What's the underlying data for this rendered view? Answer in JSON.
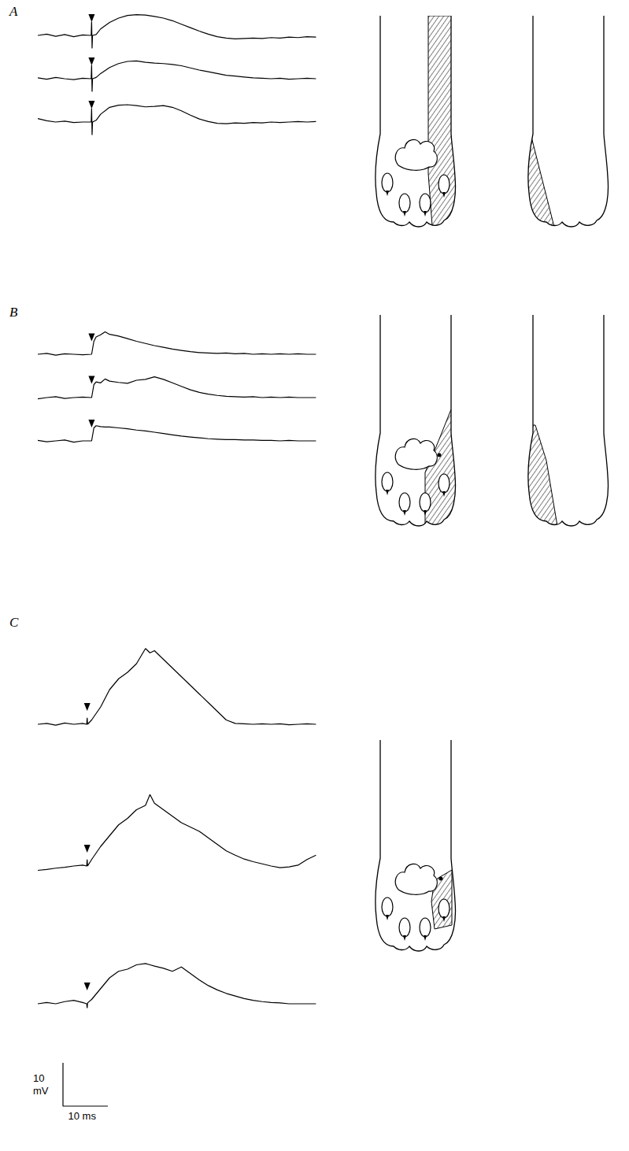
{
  "chart_data": {
    "type": "line",
    "color": "#000000",
    "grid": false,
    "tick_labels": false,
    "panels": [
      {
        "label": "A",
        "stimulus_ms": 12,
        "xlim": [
          0,
          62
        ],
        "ylim": [
          -4,
          7
        ],
        "traces": [
          {
            "x": [
              0,
              2,
              4,
              6,
              8,
              10,
              11.9,
              12,
              12.1,
              12.2,
              13,
              14,
              16,
              18,
              20,
              22,
              24,
              26,
              28,
              30,
              32,
              34,
              36,
              38,
              40,
              42,
              44,
              46,
              48,
              50,
              52,
              54,
              56,
              58,
              60,
              62
            ],
            "values": [
              0,
              0.3,
              -0.2,
              0.2,
              -0.3,
              0.1,
              0,
              3.2,
              -3,
              0,
              0.2,
              1.5,
              3,
              4,
              4.6,
              4.8,
              4.7,
              4.4,
              4,
              3.4,
              2.6,
              1.8,
              1,
              0.3,
              -0.3,
              -0.6,
              -0.8,
              -0.7,
              -0.6,
              -0.7,
              -0.5,
              -0.6,
              -0.4,
              -0.5,
              -0.3,
              -0.4
            ]
          },
          {
            "x": [
              0,
              2,
              4,
              6,
              8,
              10,
              11.9,
              12,
              12.1,
              12.2,
              13,
              14,
              16,
              18,
              20,
              22,
              24,
              26,
              28,
              30,
              32,
              34,
              36,
              38,
              40,
              42,
              44,
              46,
              48,
              50,
              52,
              54,
              56,
              58,
              60,
              62
            ],
            "values": [
              0.2,
              -0.1,
              0.3,
              0,
              -0.2,
              0.1,
              0,
              3.2,
              -3,
              0,
              0.3,
              1.2,
              2.6,
              3.5,
              4,
              4.1,
              3.8,
              3.6,
              3.5,
              3.3,
              3,
              2.5,
              2,
              1.6,
              1.2,
              0.8,
              0.6,
              0.4,
              0.2,
              0.1,
              0,
              0.1,
              -0.1,
              0,
              0.1,
              0
            ]
          },
          {
            "x": [
              0,
              2,
              4,
              6,
              8,
              10,
              11.9,
              12,
              12.1,
              12.2,
              13,
              14,
              16,
              18,
              20,
              22,
              24,
              26,
              28,
              30,
              32,
              34,
              36,
              38,
              40,
              42,
              44,
              46,
              48,
              50,
              52,
              54,
              56,
              58,
              60,
              62
            ],
            "values": [
              0.8,
              0.3,
              0,
              0.2,
              -0.1,
              0,
              0,
              3.2,
              -3,
              0,
              0.4,
              1.8,
              3.4,
              3.9,
              4,
              3.8,
              3.5,
              3.6,
              3.8,
              3.4,
              2.6,
              1.6,
              0.7,
              0.1,
              -0.3,
              -0.4,
              -0.2,
              -0.3,
              -0.1,
              -0.2,
              0,
              -0.1,
              0,
              0.1,
              0,
              0.1
            ]
          }
        ]
      },
      {
        "label": "B",
        "stimulus_ms": 12,
        "xlim": [
          0,
          62
        ],
        "ylim": [
          -4,
          7
        ],
        "traces": [
          {
            "x": [
              0,
              2,
              4,
              6,
              8,
              10,
              12,
              12.5,
              13,
              14,
              15,
              16,
              18,
              20,
              22,
              24,
              26,
              28,
              30,
              32,
              34,
              36,
              38,
              40,
              42,
              44,
              46,
              48,
              50,
              52,
              54,
              56,
              58,
              60,
              62
            ],
            "values": [
              0,
              0.2,
              -0.2,
              0.1,
              0,
              -0.1,
              0,
              3,
              4,
              4.5,
              5.2,
              4.6,
              4.2,
              3.6,
              3,
              2.5,
              2,
              1.6,
              1.2,
              0.9,
              0.6,
              0.4,
              0.3,
              0.2,
              0.3,
              0.1,
              0.2,
              0,
              0.1,
              0,
              0.1,
              0,
              0.1,
              0,
              0
            ]
          },
          {
            "x": [
              0,
              2,
              4,
              6,
              8,
              10,
              12,
              12.5,
              13,
              14,
              15,
              16,
              18,
              20,
              22,
              24,
              26,
              28,
              30,
              32,
              34,
              36,
              38,
              40,
              42,
              44,
              46,
              48,
              50,
              52,
              54,
              56,
              58,
              60,
              62
            ],
            "values": [
              -0.3,
              0,
              0.2,
              -0.2,
              0,
              0.1,
              0,
              3,
              3.6,
              3.4,
              4.3,
              3.8,
              3.5,
              3.3,
              4,
              4.2,
              4.8,
              4.2,
              3.4,
              2.6,
              1.8,
              1.2,
              0.8,
              0.5,
              0.3,
              0.2,
              0.1,
              0.2,
              0,
              0.1,
              0,
              0.1,
              0,
              0,
              0
            ]
          },
          {
            "x": [
              0,
              2,
              4,
              6,
              8,
              10,
              12,
              12.5,
              13,
              14,
              15,
              16,
              18,
              20,
              22,
              24,
              26,
              28,
              30,
              32,
              34,
              36,
              38,
              40,
              42,
              44,
              46,
              48,
              50,
              52,
              54,
              56,
              58,
              60,
              62
            ],
            "values": [
              0.1,
              -0.2,
              0,
              0.2,
              -0.3,
              0,
              0,
              3,
              3.5,
              3.3,
              3.2,
              3.2,
              3,
              2.8,
              2.5,
              2.3,
              2,
              1.7,
              1.4,
              1.1,
              0.9,
              0.7,
              0.5,
              0.4,
              0.3,
              0.3,
              0.2,
              0.2,
              0.1,
              0.1,
              0,
              0.1,
              0,
              0,
              0
            ]
          }
        ]
      },
      {
        "label": "C",
        "stimulus_ms": 11,
        "xlim": [
          0,
          62
        ],
        "ylim": [
          -4,
          20
        ],
        "traces": [
          {
            "x": [
              0,
              2,
              4,
              6,
              8,
              10,
              10.9,
              11,
              11.1,
              12,
              14,
              16,
              18,
              20,
              22,
              24,
              25,
              26,
              28,
              30,
              32,
              34,
              36,
              38,
              40,
              42,
              44,
              46,
              48,
              50,
              52,
              54,
              56,
              58,
              60,
              62
            ],
            "values": [
              0,
              0.2,
              -0.2,
              0.3,
              0,
              0.2,
              0,
              1.5,
              0,
              1,
              4,
              8,
              10.5,
              12,
              14,
              17.5,
              16.5,
              17,
              15,
              13,
              11,
              9,
              7,
              5,
              3,
              1,
              0.2,
              0.1,
              0,
              0.1,
              0,
              0.1,
              -0.1,
              0,
              0.1,
              0
            ]
          },
          {
            "x": [
              0,
              2,
              4,
              6,
              8,
              10,
              10.9,
              11,
              11.1,
              12,
              14,
              16,
              18,
              20,
              22,
              24,
              25,
              26,
              28,
              30,
              32,
              34,
              36,
              38,
              40,
              42,
              44,
              46,
              48,
              50,
              52,
              54,
              56,
              58,
              60,
              62
            ],
            "values": [
              -1,
              -0.8,
              -0.5,
              -0.3,
              0,
              0.2,
              0,
              1.5,
              0,
              1.5,
              4.5,
              7,
              9.5,
              11,
              13,
              14,
              16.5,
              14.5,
              13,
              11.5,
              10,
              9,
              8,
              6.5,
              5,
              3.5,
              2.5,
              1.6,
              1,
              0.5,
              0,
              -0.4,
              -0.2,
              0.2,
              1.5,
              2.5
            ]
          },
          {
            "x": [
              0,
              2,
              4,
              6,
              8,
              10,
              10.9,
              11,
              11.1,
              12,
              14,
              16,
              18,
              20,
              22,
              24,
              25,
              26,
              28,
              30,
              32,
              34,
              36,
              38,
              40,
              42,
              44,
              46,
              48,
              50,
              52,
              54,
              56,
              58,
              60,
              62
            ],
            "values": [
              0,
              0.3,
              0,
              0.5,
              0.8,
              0.3,
              0,
              -1,
              0.2,
              1,
              3.5,
              6,
              7.5,
              8,
              9,
              9.3,
              9,
              8.7,
              8.2,
              7.5,
              8.5,
              7,
              5.5,
              4.2,
              3.2,
              2.4,
              1.8,
              1.2,
              0.8,
              0.5,
              0.3,
              0.2,
              0,
              0,
              0,
              0
            ]
          }
        ]
      }
    ],
    "scale_bar": {
      "ms": 10,
      "mV": 10,
      "ms_label": "10 ms",
      "mV_label": "10 mV"
    }
  }
}
